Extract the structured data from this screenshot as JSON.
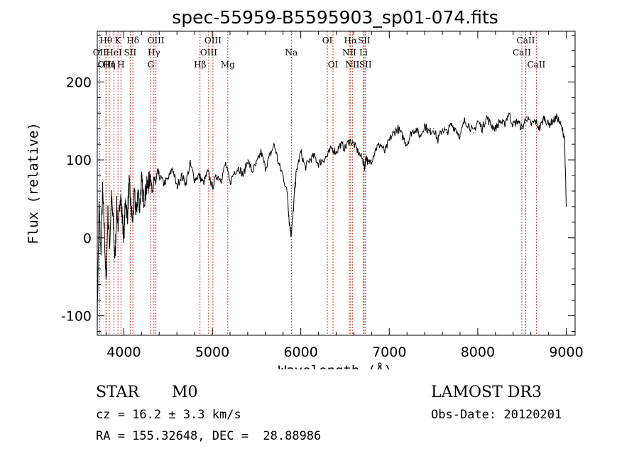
{
  "chart_data": {
    "type": "line",
    "title": "spec-55959-B5595903_sp01-074.fits",
    "xlabel": "Wavelength (Å)",
    "ylabel": "Flux (relative)",
    "xlim": [
      3700,
      9100
    ],
    "ylim": [
      -125,
      265
    ],
    "xticks": [
      4000,
      5000,
      6000,
      7000,
      8000,
      9000
    ],
    "yticks": [
      -100,
      0,
      100,
      200
    ],
    "grid": false,
    "series": [
      {
        "name": "spectrum",
        "x": [
          3700,
          3720,
          3740,
          3760,
          3780,
          3800,
          3820,
          3840,
          3860,
          3880,
          3900,
          3920,
          3940,
          3960,
          3980,
          4000,
          4020,
          4040,
          4060,
          4080,
          4100,
          4120,
          4140,
          4160,
          4180,
          4200,
          4220,
          4240,
          4260,
          4280,
          4300,
          4320,
          4340,
          4360,
          4380,
          4400,
          4450,
          4500,
          4550,
          4600,
          4650,
          4700,
          4750,
          4800,
          4850,
          4900,
          4950,
          5000,
          5050,
          5100,
          5150,
          5200,
          5250,
          5300,
          5350,
          5400,
          5450,
          5500,
          5550,
          5600,
          5650,
          5700,
          5750,
          5800,
          5850,
          5870,
          5890,
          5910,
          5930,
          5950,
          6000,
          6050,
          6100,
          6150,
          6200,
          6250,
          6300,
          6350,
          6400,
          6450,
          6500,
          6550,
          6600,
          6650,
          6700,
          6720,
          6740,
          6760,
          6800,
          6850,
          6900,
          6950,
          7000,
          7050,
          7100,
          7150,
          7200,
          7250,
          7300,
          7350,
          7400,
          7450,
          7500,
          7550,
          7600,
          7650,
          7700,
          7750,
          7800,
          7850,
          7900,
          7950,
          8000,
          8050,
          8100,
          8150,
          8200,
          8250,
          8300,
          8350,
          8400,
          8450,
          8500,
          8550,
          8600,
          8650,
          8700,
          8750,
          8800,
          8850,
          8900,
          8950,
          8980,
          9000
        ],
        "y": [
          -110,
          40,
          -20,
          60,
          10,
          -60,
          30,
          -10,
          50,
          20,
          -30,
          40,
          10,
          60,
          30,
          0,
          50,
          25,
          70,
          40,
          20,
          55,
          30,
          60,
          40,
          75,
          50,
          55,
          65,
          70,
          80,
          60,
          75,
          70,
          85,
          80,
          70,
          75,
          90,
          65,
          80,
          70,
          95,
          75,
          80,
          70,
          85,
          65,
          80,
          75,
          95,
          70,
          85,
          90,
          80,
          100,
          85,
          95,
          110,
          90,
          105,
          120,
          95,
          80,
          55,
          20,
          5,
          25,
          60,
          85,
          110,
          90,
          100,
          105,
          95,
          100,
          105,
          115,
          110,
          120,
          115,
          125,
          120,
          110,
          100,
          90,
          105,
          95,
          100,
          115,
          120,
          110,
          125,
          135,
          140,
          130,
          120,
          135,
          140,
          130,
          145,
          135,
          140,
          125,
          140,
          135,
          145,
          140,
          130,
          150,
          145,
          135,
          150,
          140,
          155,
          145,
          140,
          150,
          145,
          160,
          145,
          150,
          140,
          155,
          145,
          150,
          140,
          155,
          145,
          150,
          155,
          140,
          130,
          40
        ]
      }
    ],
    "lines": [
      {
        "name": "OII",
        "wave": 3727,
        "row": 2
      },
      {
        "name": "Hθ",
        "wave": 3798,
        "row": 1
      },
      {
        "name": "OIII",
        "wave": 3800,
        "row": 3
      },
      {
        "name": "Hη",
        "wave": 3835,
        "row": 3
      },
      {
        "name": "HeI",
        "wave": 3889,
        "row": 2
      },
      {
        "name": "K",
        "wave": 3934,
        "row": 1
      },
      {
        "name": "H",
        "wave": 3968,
        "row": 3
      },
      {
        "name": "SII",
        "wave": 4072,
        "row": 2
      },
      {
        "name": "Hδ",
        "wave": 4102,
        "row": 1
      },
      {
        "name": "G",
        "wave": 4305,
        "row": 3
      },
      {
        "name": "OIII",
        "wave": 4363,
        "row": 1
      },
      {
        "name": "Hγ",
        "wave": 4340,
        "row": 2
      },
      {
        "name": "Hβ",
        "wave": 4861,
        "row": 3
      },
      {
        "name": "OIII",
        "wave": 4959,
        "row": 2
      },
      {
        "name": "OIII",
        "wave": 5007,
        "row": 1
      },
      {
        "name": "Mg",
        "wave": 5175,
        "row": 3
      },
      {
        "name": "Na",
        "wave": 5893,
        "row": 2
      },
      {
        "name": "OI",
        "wave": 6300,
        "row": 1
      },
      {
        "name": "OI",
        "wave": 6364,
        "row": 3
      },
      {
        "name": "NII",
        "wave": 6548,
        "row": 2
      },
      {
        "name": "Hα",
        "wave": 6563,
        "row": 1
      },
      {
        "name": "NII",
        "wave": 6583,
        "row": 3
      },
      {
        "name": "SII",
        "wave": 6716,
        "row": 1
      },
      {
        "name": "Li",
        "wave": 6708,
        "row": 2
      },
      {
        "name": "SII",
        "wave": 6731,
        "row": 3
      },
      {
        "name": "CaII",
        "wave": 8498,
        "row": 2
      },
      {
        "name": "CaII",
        "wave": 8542,
        "row": 1
      },
      {
        "name": "CaII",
        "wave": 8662,
        "row": 3
      }
    ]
  },
  "info": {
    "object_class": "STAR",
    "subclass": "M0",
    "survey": "LAMOST DR3",
    "cz": "cz = 16.2 ± 3.3 km/s",
    "obs_date": "Obs-Date: 20120201",
    "coords": "RA = 155.32648, DEC =  28.88986"
  },
  "colors": {
    "spectrum": "#000000",
    "line_marker": "#c0392b"
  }
}
